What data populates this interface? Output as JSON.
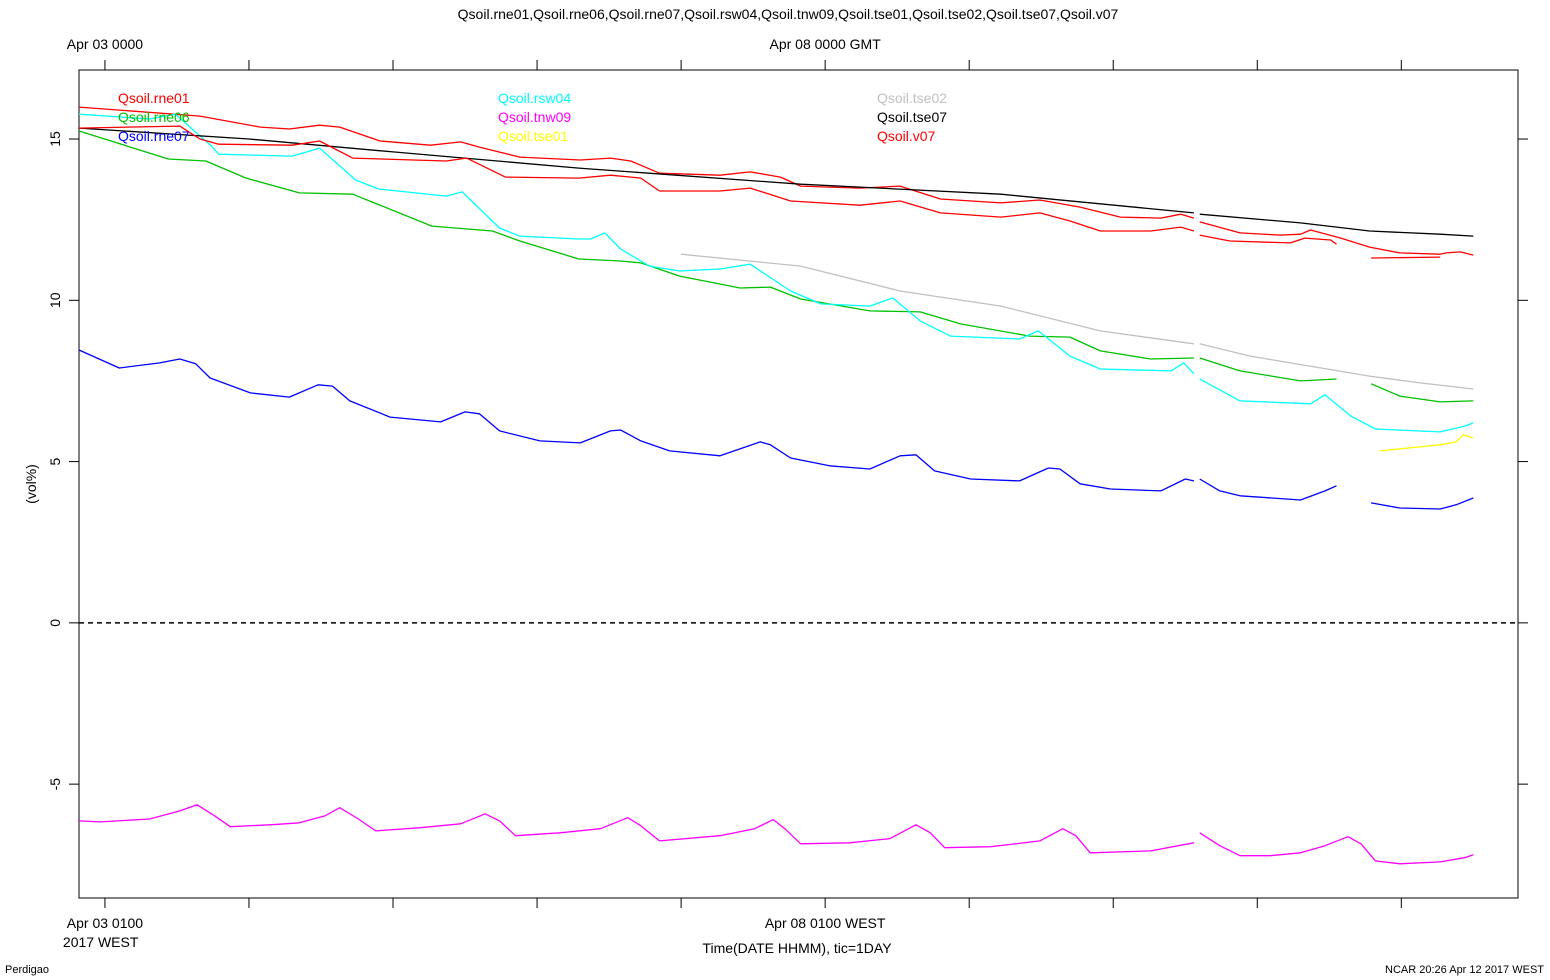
{
  "chart_data": {
    "type": "line",
    "title": "Qsoil.rne01,Qsoil.rne06,Qsoil.rne07,Qsoil.rsw04,Qsoil.tnw09,Qsoil.tse01,Qsoil.tse02,Qsoil.tse07,Qsoil.v07",
    "xlabel": "Time(DATE HHMM), tic=1DAY",
    "ylabel": "(vol%)",
    "x_units": "days since Apr 03 0100 WEST 2017",
    "xlim": [
      -0.18,
      9.81
    ],
    "ylim": [
      -8.53,
      17.14
    ],
    "grid": false,
    "zero_line": 0,
    "yticks": [
      -5,
      0,
      5,
      10,
      15
    ],
    "ytick_labels": [
      "-5",
      "0",
      "5",
      "10",
      "15"
    ],
    "xticks": [
      0,
      1,
      2,
      3,
      4,
      5,
      6,
      7,
      8,
      9
    ],
    "top_labels": [
      {
        "x": 0,
        "text": "Apr 03 0000"
      },
      {
        "x": 5,
        "text": "Apr 08 0000 GMT"
      }
    ],
    "bottom_labels": [
      {
        "x": 0,
        "line1": "Apr 03 0100",
        "line2": "2017 WEST"
      },
      {
        "x": 5,
        "line1": "Apr 08 0100 WEST",
        "line2": ""
      }
    ],
    "legend_placement": "top-left (three columns)",
    "series": [
      {
        "name": "Qsoil.rne01",
        "color": "#ff0000",
        "points": [
          [
            -0.18,
            15.99
          ],
          [
            0.66,
            15.71
          ],
          [
            1.08,
            15.37
          ],
          [
            1.28,
            15.31
          ],
          [
            1.49,
            15.43
          ],
          [
            1.63,
            15.37
          ],
          [
            1.91,
            14.94
          ],
          [
            2.26,
            14.81
          ],
          [
            2.47,
            14.91
          ],
          [
            2.6,
            14.75
          ],
          [
            2.88,
            14.44
          ],
          [
            3.3,
            14.35
          ],
          [
            3.51,
            14.41
          ],
          [
            3.65,
            14.32
          ],
          [
            3.85,
            13.94
          ],
          [
            4.27,
            13.88
          ],
          [
            4.48,
            13.98
          ],
          [
            4.69,
            13.82
          ],
          [
            4.83,
            13.54
          ],
          [
            5.24,
            13.48
          ],
          [
            5.52,
            13.54
          ],
          [
            5.8,
            13.14
          ],
          [
            6.22,
            13.02
          ],
          [
            6.49,
            13.11
          ],
          [
            6.77,
            12.89
          ],
          [
            7.05,
            12.58
          ],
          [
            7.33,
            12.55
          ],
          [
            7.47,
            12.67
          ],
          [
            7.56,
            12.55
          ],
          null,
          [
            7.6,
            12.43
          ],
          [
            7.88,
            12.09
          ],
          [
            8.16,
            12.02
          ],
          [
            8.3,
            12.05
          ],
          [
            8.37,
            12.18
          ],
          [
            8.58,
            11.93
          ],
          [
            8.78,
            11.65
          ],
          [
            8.99,
            11.47
          ],
          [
            9.27,
            11.43
          ],
          [
            9.31,
            11.47
          ],
          [
            9.41,
            11.5
          ],
          [
            9.5,
            11.4
          ]
        ]
      },
      {
        "name": "Qsoil.rne06",
        "color": "#00c000",
        "points": [
          [
            -0.18,
            15.25
          ],
          [
            0.44,
            14.38
          ],
          [
            0.7,
            14.32
          ],
          [
            0.98,
            13.79
          ],
          [
            1.35,
            13.33
          ],
          [
            1.72,
            13.29
          ],
          [
            2.27,
            12.3
          ],
          [
            2.69,
            12.15
          ],
          [
            2.88,
            11.84
          ],
          [
            3.29,
            11.28
          ],
          [
            3.58,
            11.22
          ],
          [
            3.72,
            11.16
          ],
          [
            3.99,
            10.75
          ],
          [
            4.41,
            10.38
          ],
          [
            4.62,
            10.41
          ],
          [
            4.83,
            10.04
          ],
          [
            5.31,
            9.67
          ],
          [
            5.66,
            9.64
          ],
          [
            5.94,
            9.27
          ],
          [
            6.42,
            8.89
          ],
          [
            6.7,
            8.86
          ],
          [
            6.91,
            8.43
          ],
          [
            7.26,
            8.18
          ],
          [
            7.56,
            8.21
          ],
          null,
          [
            7.6,
            8.21
          ],
          [
            7.88,
            7.81
          ],
          [
            8.3,
            7.5
          ],
          [
            8.55,
            7.56
          ],
          null,
          [
            8.79,
            7.41
          ],
          [
            8.99,
            7.03
          ],
          [
            9.27,
            6.85
          ],
          [
            9.5,
            6.88
          ]
        ]
      },
      {
        "name": "Qsoil.rne07",
        "color": "#0000ff",
        "points": [
          [
            -0.18,
            8.46
          ],
          [
            0.1,
            7.9
          ],
          [
            0.38,
            8.06
          ],
          [
            0.52,
            8.18
          ],
          [
            0.63,
            8.03
          ],
          [
            0.73,
            7.59
          ],
          [
            1.01,
            7.13
          ],
          [
            1.28,
            7.0
          ],
          [
            1.48,
            7.38
          ],
          [
            1.58,
            7.34
          ],
          [
            1.7,
            6.88
          ],
          [
            1.98,
            6.38
          ],
          [
            2.33,
            6.23
          ],
          [
            2.5,
            6.54
          ],
          [
            2.6,
            6.48
          ],
          [
            2.74,
            5.95
          ],
          [
            3.02,
            5.64
          ],
          [
            3.3,
            5.58
          ],
          [
            3.51,
            5.95
          ],
          [
            3.58,
            5.98
          ],
          [
            3.72,
            5.64
          ],
          [
            3.92,
            5.33
          ],
          [
            4.27,
            5.18
          ],
          [
            4.55,
            5.61
          ],
          [
            4.62,
            5.52
          ],
          [
            4.76,
            5.11
          ],
          [
            5.03,
            4.87
          ],
          [
            5.31,
            4.77
          ],
          [
            5.52,
            5.18
          ],
          [
            5.63,
            5.21
          ],
          [
            5.76,
            4.71
          ],
          [
            6.01,
            4.46
          ],
          [
            6.35,
            4.4
          ],
          [
            6.55,
            4.8
          ],
          [
            6.63,
            4.77
          ],
          [
            6.77,
            4.31
          ],
          [
            6.98,
            4.15
          ],
          [
            7.33,
            4.09
          ],
          [
            7.5,
            4.46
          ],
          [
            7.56,
            4.4
          ],
          null,
          [
            7.6,
            4.46
          ],
          [
            7.74,
            4.09
          ],
          [
            7.88,
            3.94
          ],
          [
            8.3,
            3.81
          ],
          [
            8.47,
            4.09
          ],
          [
            8.55,
            4.25
          ],
          null,
          [
            8.79,
            3.72
          ],
          [
            8.99,
            3.56
          ],
          [
            9.27,
            3.53
          ],
          [
            9.38,
            3.66
          ],
          [
            9.5,
            3.87
          ]
        ]
      },
      {
        "name": "Qsoil.rsw04",
        "color": "#00ffff",
        "points": [
          [
            -0.18,
            15.77
          ],
          [
            0.31,
            15.62
          ],
          [
            0.49,
            15.77
          ],
          [
            0.52,
            15.65
          ],
          [
            0.74,
            14.78
          ],
          [
            0.79,
            14.53
          ],
          [
            1.3,
            14.47
          ],
          [
            1.49,
            14.72
          ],
          [
            1.74,
            13.73
          ],
          [
            1.9,
            13.45
          ],
          [
            2.37,
            13.23
          ],
          [
            2.48,
            13.36
          ],
          [
            2.74,
            12.24
          ],
          [
            2.88,
            11.99
          ],
          [
            3.29,
            11.9
          ],
          [
            3.37,
            11.9
          ],
          [
            3.47,
            12.09
          ],
          [
            3.58,
            11.59
          ],
          [
            3.78,
            11.06
          ],
          [
            3.99,
            10.91
          ],
          [
            4.27,
            10.97
          ],
          [
            4.48,
            11.12
          ],
          [
            4.76,
            10.29
          ],
          [
            4.97,
            9.89
          ],
          [
            5.31,
            9.82
          ],
          [
            5.47,
            10.07
          ],
          [
            5.66,
            9.36
          ],
          [
            5.87,
            8.89
          ],
          [
            6.35,
            8.8
          ],
          [
            6.48,
            9.05
          ],
          [
            6.7,
            8.27
          ],
          [
            6.91,
            7.87
          ],
          [
            7.4,
            7.81
          ],
          [
            7.49,
            8.06
          ],
          [
            7.56,
            7.72
          ],
          null,
          [
            7.6,
            7.56
          ],
          [
            7.88,
            6.88
          ],
          [
            8.37,
            6.79
          ],
          [
            8.47,
            7.07
          ],
          [
            8.65,
            6.41
          ],
          [
            8.82,
            6.01
          ],
          [
            9.27,
            5.92
          ],
          [
            9.44,
            6.1
          ],
          [
            9.5,
            6.2
          ]
        ]
      },
      {
        "name": "Qsoil.tnw09",
        "color": "#ff00ff",
        "points": [
          [
            -0.18,
            -6.14
          ],
          [
            -0.03,
            -6.17
          ],
          [
            0.31,
            -6.08
          ],
          [
            0.52,
            -5.83
          ],
          [
            0.64,
            -5.64
          ],
          [
            0.76,
            -5.98
          ],
          [
            0.87,
            -6.32
          ],
          [
            1.15,
            -6.26
          ],
          [
            1.35,
            -6.2
          ],
          [
            1.53,
            -5.98
          ],
          [
            1.63,
            -5.73
          ],
          [
            1.76,
            -6.08
          ],
          [
            1.88,
            -6.45
          ],
          [
            2.19,
            -6.35
          ],
          [
            2.47,
            -6.23
          ],
          [
            2.64,
            -5.92
          ],
          [
            2.74,
            -6.14
          ],
          [
            2.85,
            -6.6
          ],
          [
            3.16,
            -6.51
          ],
          [
            3.44,
            -6.38
          ],
          [
            3.63,
            -6.04
          ],
          [
            3.72,
            -6.29
          ],
          [
            3.85,
            -6.76
          ],
          [
            4.27,
            -6.6
          ],
          [
            4.51,
            -6.38
          ],
          [
            4.64,
            -6.1
          ],
          [
            4.72,
            -6.38
          ],
          [
            4.83,
            -6.85
          ],
          [
            5.17,
            -6.82
          ],
          [
            5.45,
            -6.69
          ],
          [
            5.63,
            -6.26
          ],
          [
            5.73,
            -6.51
          ],
          [
            5.83,
            -6.97
          ],
          [
            6.15,
            -6.94
          ],
          [
            6.49,
            -6.76
          ],
          [
            6.65,
            -6.38
          ],
          [
            6.74,
            -6.6
          ],
          [
            6.84,
            -7.13
          ],
          [
            7.26,
            -7.07
          ],
          [
            7.56,
            -6.82
          ],
          null,
          [
            7.6,
            -6.51
          ],
          [
            7.74,
            -6.91
          ],
          [
            7.88,
            -7.22
          ],
          [
            8.09,
            -7.22
          ],
          [
            8.3,
            -7.13
          ],
          [
            8.47,
            -6.91
          ],
          [
            8.63,
            -6.63
          ],
          [
            8.72,
            -6.85
          ],
          [
            8.82,
            -7.38
          ],
          [
            8.99,
            -7.47
          ],
          [
            9.27,
            -7.41
          ],
          [
            9.44,
            -7.28
          ],
          [
            9.5,
            -7.19
          ]
        ]
      },
      {
        "name": "Qsoil.tse01",
        "color": "#ffff00",
        "points": [
          [
            8.85,
            5.33
          ],
          [
            9.27,
            5.52
          ],
          [
            9.38,
            5.61
          ],
          [
            9.43,
            5.83
          ],
          [
            9.5,
            5.73
          ]
        ]
      },
      {
        "name": "Qsoil.tse02",
        "color": "#c0c0c0",
        "points": [
          [
            4.0,
            11.43
          ],
          [
            4.83,
            11.06
          ],
          [
            5.52,
            10.29
          ],
          [
            6.22,
            9.82
          ],
          [
            6.91,
            9.05
          ],
          [
            7.56,
            8.65
          ],
          null,
          [
            7.6,
            8.65
          ],
          [
            7.95,
            8.27
          ],
          [
            8.23,
            8.06
          ],
          [
            8.78,
            7.65
          ],
          [
            9.13,
            7.44
          ],
          [
            9.5,
            7.25
          ]
        ]
      },
      {
        "name": "Qsoil.tse07",
        "color": "#000000",
        "points": [
          [
            -0.18,
            15.34
          ],
          [
            1.0,
            15.0
          ],
          [
            2.0,
            14.6
          ],
          [
            3.29,
            14.1
          ],
          [
            4.83,
            13.6
          ],
          [
            6.22,
            13.29
          ],
          [
            7.56,
            12.71
          ],
          null,
          [
            7.6,
            12.67
          ],
          [
            8.3,
            12.4
          ],
          [
            8.78,
            12.15
          ],
          [
            9.27,
            12.05
          ],
          [
            9.5,
            11.99
          ]
        ]
      },
      {
        "name": "Qsoil.v07",
        "color": "#ff0000",
        "points": [
          [
            -0.18,
            15.34
          ],
          [
            0.52,
            15.4
          ],
          [
            0.66,
            15.0
          ],
          [
            0.79,
            14.84
          ],
          [
            1.3,
            14.81
          ],
          [
            1.49,
            14.94
          ],
          [
            1.72,
            14.41
          ],
          [
            2.37,
            14.32
          ],
          [
            2.51,
            14.41
          ],
          [
            2.78,
            13.82
          ],
          [
            3.29,
            13.79
          ],
          [
            3.51,
            13.88
          ],
          [
            3.72,
            13.79
          ],
          [
            3.85,
            13.39
          ],
          [
            4.27,
            13.39
          ],
          [
            4.48,
            13.48
          ],
          [
            4.76,
            13.08
          ],
          [
            5.24,
            12.95
          ],
          [
            5.52,
            13.08
          ],
          [
            5.8,
            12.71
          ],
          [
            6.22,
            12.58
          ],
          [
            6.49,
            12.71
          ],
          [
            6.7,
            12.46
          ],
          [
            6.91,
            12.15
          ],
          [
            7.26,
            12.15
          ],
          [
            7.47,
            12.27
          ],
          [
            7.56,
            12.15
          ],
          null,
          [
            7.6,
            12.02
          ],
          [
            7.81,
            11.84
          ],
          [
            8.23,
            11.78
          ],
          [
            8.33,
            11.93
          ],
          [
            8.51,
            11.87
          ],
          [
            8.55,
            11.74
          ],
          null,
          [
            8.79,
            11.31
          ],
          [
            9.27,
            11.34
          ]
        ]
      }
    ]
  },
  "footer": {
    "left": "Perdigao",
    "right": "NCAR 20:26 Apr 12 2017 WEST"
  }
}
